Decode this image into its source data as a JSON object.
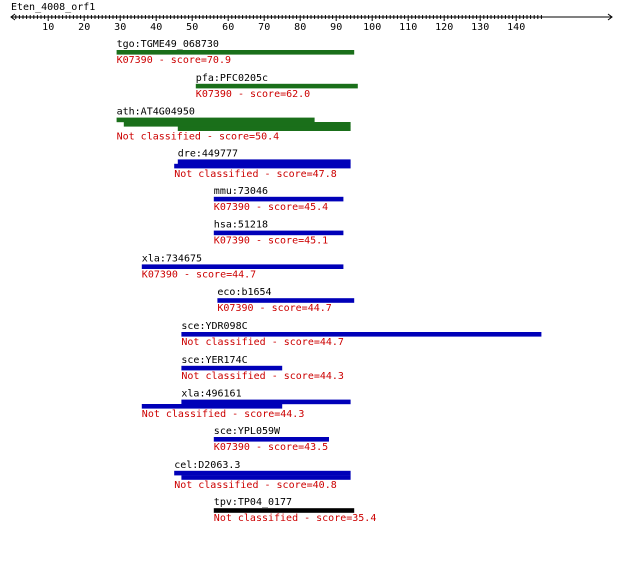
{
  "title": "Eten_4008_orf1",
  "axis": {
    "min": 1,
    "max": 147,
    "ticks": [
      10,
      20,
      30,
      40,
      50,
      60,
      70,
      80,
      90,
      100,
      110,
      120,
      130,
      140
    ]
  },
  "colors": {
    "green": "#1a6f1a",
    "blue": "#0000b8",
    "black": "#000000",
    "score_text": "#cc0000",
    "axis": "#000000"
  },
  "hits": [
    {
      "name": "tgo:TGME49_068730",
      "score_text": "K07390 - score=70.9",
      "color": "green",
      "segments": [
        [
          29,
          95
        ]
      ]
    },
    {
      "name": "pfa:PFC0205c",
      "score_text": "K07390 - score=62.0",
      "color": "green",
      "segments": [
        [
          51,
          96
        ]
      ]
    },
    {
      "name": "ath:AT4G04950",
      "score_text": "Not classified - score=50.4",
      "color": "green",
      "segments": [
        [
          29,
          84
        ],
        [
          31,
          94
        ],
        [
          46,
          94
        ]
      ]
    },
    {
      "name": "dre:449777",
      "score_text": "Not classified - score=47.8",
      "color": "blue",
      "segments": [
        [
          46,
          94
        ],
        [
          45,
          94
        ]
      ]
    },
    {
      "name": "mmu:73046",
      "score_text": "K07390 - score=45.4",
      "color": "blue",
      "segments": [
        [
          56,
          92
        ]
      ]
    },
    {
      "name": "hsa:51218",
      "score_text": "K07390 - score=45.1",
      "color": "blue",
      "segments": [
        [
          56,
          92
        ]
      ]
    },
    {
      "name": "xla:734675",
      "score_text": "K07390 - score=44.7",
      "color": "blue",
      "segments": [
        [
          36,
          92
        ]
      ]
    },
    {
      "name": "eco:b1654",
      "score_text": "K07390 - score=44.7",
      "color": "blue",
      "segments": [
        [
          57,
          95
        ]
      ]
    },
    {
      "name": "sce:YDR098C",
      "score_text": "Not classified - score=44.7",
      "color": "blue",
      "segments": [
        [
          47,
          147
        ]
      ]
    },
    {
      "name": "sce:YER174C",
      "score_text": "Not classified - score=44.3",
      "color": "blue",
      "segments": [
        [
          47,
          75
        ]
      ]
    },
    {
      "name": "xla:496161",
      "score_text": "Not classified - score=44.3",
      "color": "blue",
      "segments": [
        [
          47,
          94
        ],
        [
          36,
          75
        ]
      ]
    },
    {
      "name": "sce:YPL059W",
      "score_text": "K07390 - score=43.5",
      "color": "blue",
      "segments": [
        [
          56,
          88
        ]
      ]
    },
    {
      "name": "cel:D2063.3",
      "score_text": "Not classified - score=40.8",
      "color": "blue",
      "segments": [
        [
          45,
          94
        ],
        [
          47,
          94
        ]
      ]
    },
    {
      "name": "tpv:TP04_0177",
      "score_text": "Not classified - score=35.4",
      "color": "black",
      "segments": [
        [
          56,
          95
        ]
      ]
    }
  ]
}
